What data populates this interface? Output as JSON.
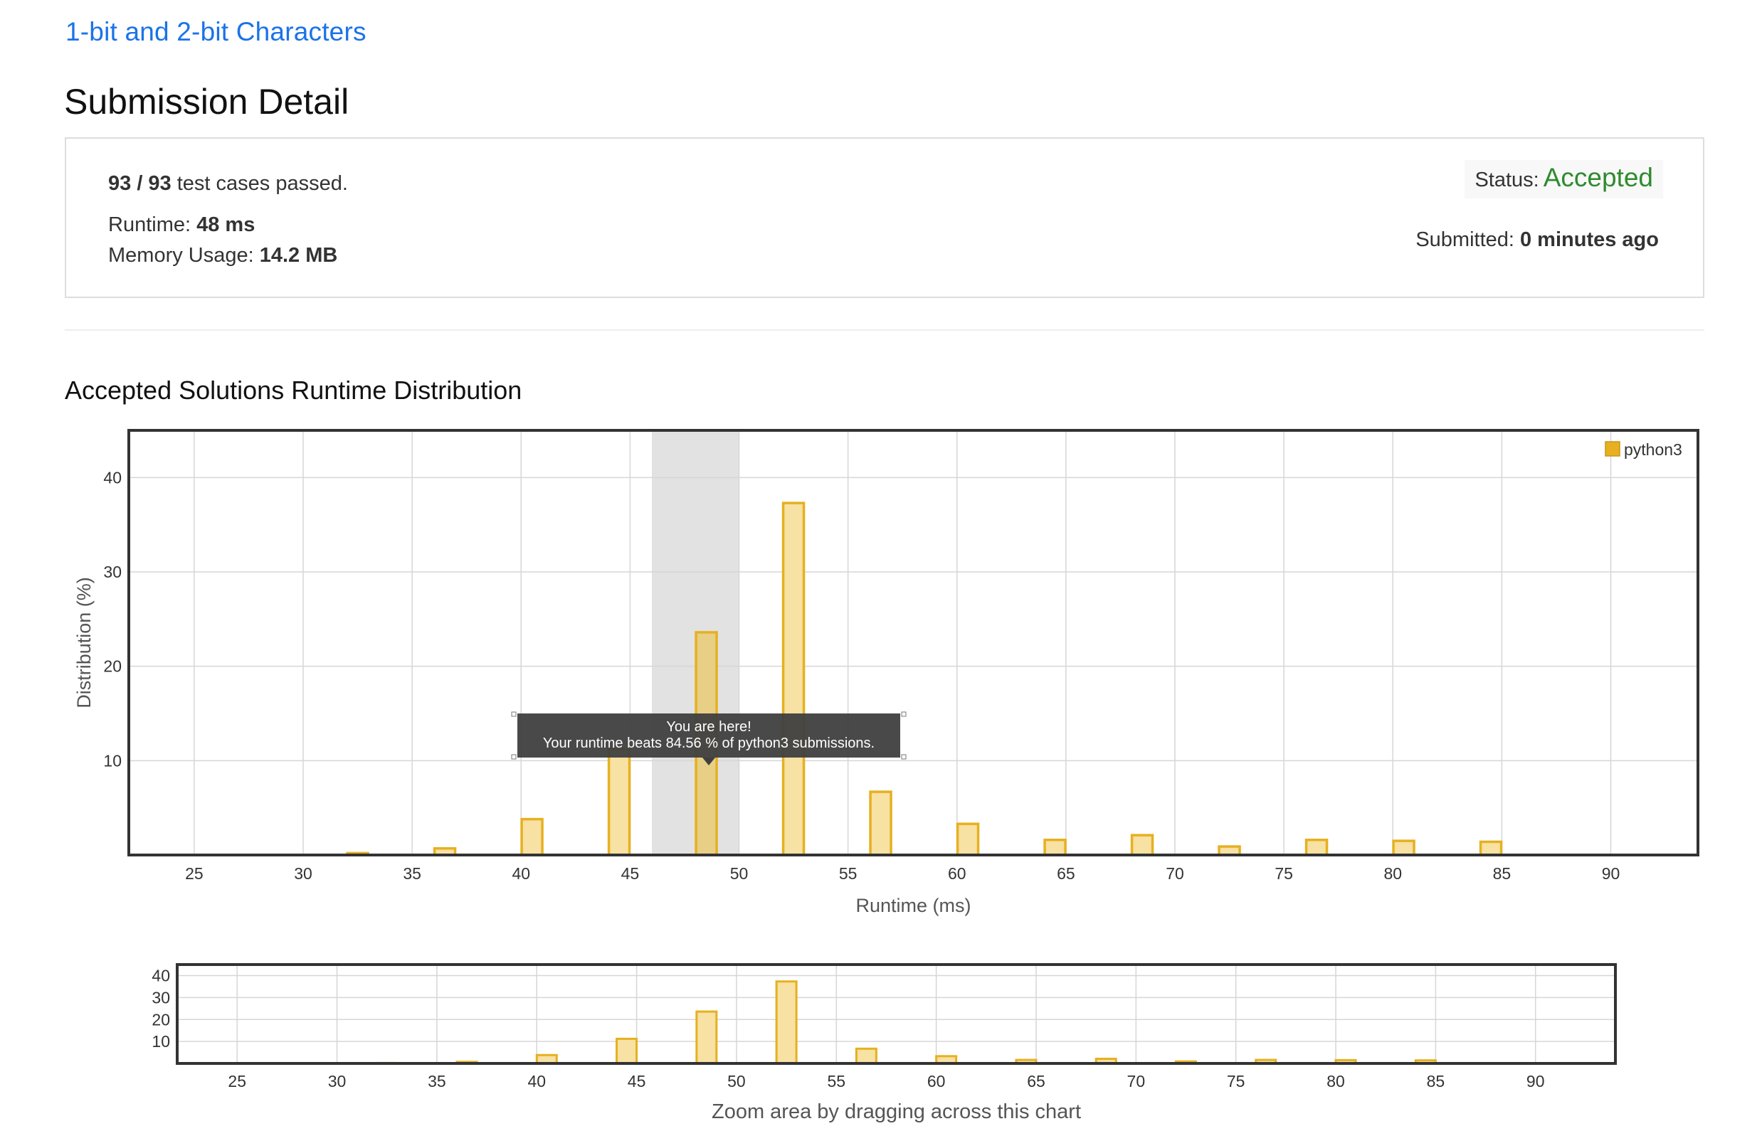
{
  "problem": {
    "title": "1-bit and 2-bit Characters"
  },
  "page": {
    "title": "Submission Detail"
  },
  "submission": {
    "passed": "93 / 93",
    "passed_suffix": " test cases passed.",
    "runtime_label": "Runtime: ",
    "runtime_value": "48 ms",
    "memory_label": "Memory Usage: ",
    "memory_value": "14.2 MB",
    "status_label": "Status:",
    "status_value": "Accepted",
    "status_color": "#2e8b2e",
    "submitted_label": "Submitted: ",
    "submitted_value": "0 minutes ago"
  },
  "section": {
    "title": "Accepted Solutions Runtime Distribution"
  },
  "tooltip": {
    "line1": "You are here!",
    "line2": "Your runtime beats 84.56 % of python3 submissions."
  },
  "chart_data": [
    {
      "type": "bar",
      "title": "",
      "xlabel": "Runtime (ms)",
      "ylabel": "Distribution (%)",
      "xlim": [
        22,
        94
      ],
      "ylim": [
        0,
        45
      ],
      "x_ticks": [
        25,
        30,
        35,
        40,
        45,
        50,
        55,
        60,
        65,
        70,
        75,
        80,
        85,
        90
      ],
      "y_ticks": [
        10,
        20,
        30,
        40
      ],
      "grid": true,
      "legend": "top-right",
      "series": [
        {
          "name": "python3",
          "color": "#e6b020",
          "fill": "#f7e1a3",
          "x": [
            32.5,
            36.5,
            40.5,
            44.5,
            48.5,
            52.5,
            56.5,
            60.5,
            64.5,
            68.5,
            72.5,
            76.5,
            80.5,
            84.5
          ],
          "values": [
            0.2,
            0.7,
            3.8,
            11.2,
            23.6,
            37.3,
            6.7,
            3.3,
            1.6,
            2.1,
            0.9,
            1.6,
            1.5,
            1.4
          ]
        }
      ],
      "highlight": {
        "from": 46,
        "to": 50,
        "bar_x": 48.5
      }
    },
    {
      "type": "bar",
      "title": "",
      "xlabel": "Zoom area by dragging across this chart",
      "ylabel": "",
      "xlim": [
        22,
        94
      ],
      "ylim": [
        0,
        45
      ],
      "x_ticks": [
        25,
        30,
        35,
        40,
        45,
        50,
        55,
        60,
        65,
        70,
        75,
        80,
        85,
        90
      ],
      "y_ticks": [
        10,
        20,
        30,
        40
      ],
      "grid": true,
      "series": [
        {
          "name": "python3",
          "color": "#e6b020",
          "fill": "#f7e1a3",
          "x": [
            32.5,
            36.5,
            40.5,
            44.5,
            48.5,
            52.5,
            56.5,
            60.5,
            64.5,
            68.5,
            72.5,
            76.5,
            80.5,
            84.5
          ],
          "values": [
            0.2,
            0.7,
            3.8,
            11.2,
            23.6,
            37.3,
            6.7,
            3.3,
            1.6,
            2.1,
            0.9,
            1.6,
            1.5,
            1.4
          ]
        }
      ]
    }
  ]
}
